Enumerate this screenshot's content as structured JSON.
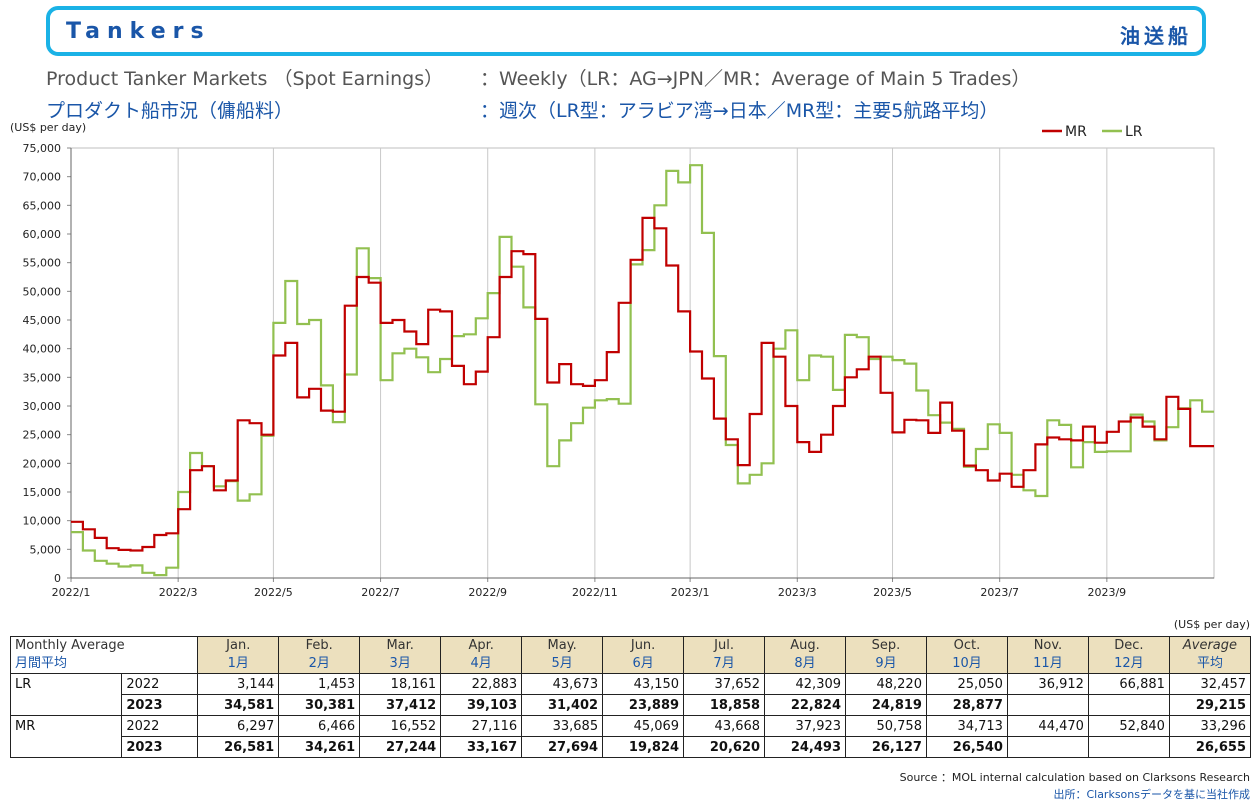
{
  "header": {
    "title": "Tankers",
    "title_jp": "油送船",
    "subtitle_en_left": "Product Tanker Markets （Spot Earnings）",
    "subtitle_en_right": "：Weekly（LR：AG→JPN／MR：Average of Main 5 Trades）",
    "subtitle_jp_left": "プロダクト船市況（傭船料）",
    "subtitle_jp_right": "：週次（LR型：アラビア湾→日本／MR型：主要5航路平均）"
  },
  "chart_data": {
    "type": "line",
    "ylabel": "(US$ per day)",
    "ylim": [
      0,
      75000
    ],
    "yticks": [
      0,
      5000,
      10000,
      15000,
      20000,
      25000,
      30000,
      35000,
      40000,
      45000,
      50000,
      55000,
      60000,
      65000,
      70000,
      75000
    ],
    "ytick_labels": [
      "0",
      "5,000",
      "10,000",
      "15,000",
      "20,000",
      "25,000",
      "30,000",
      "35,000",
      "40,000",
      "45,000",
      "50,000",
      "55,000",
      "60,000",
      "65,000",
      "70,000",
      "75,000"
    ],
    "xtick_labels": [
      "2022/1",
      "2022/3",
      "2022/5",
      "2022/7",
      "2022/9",
      "2022/11",
      "2023/1",
      "2023/3",
      "2023/5",
      "2023/7",
      "2023/9"
    ],
    "xtick_weeks": [
      0,
      9,
      17,
      26,
      35,
      44,
      52,
      61,
      69,
      78,
      87
    ],
    "x_unit": "week index starting 2022/1",
    "legend_position": "top-right",
    "grid": "vertical",
    "series": [
      {
        "name": "MR",
        "color": "#c00000",
        "values": [
          9800,
          8500,
          7000,
          5200,
          4900,
          4800,
          5400,
          7500,
          7800,
          12000,
          18800,
          19500,
          15300,
          17000,
          27500,
          27000,
          25000,
          38800,
          41000,
          31500,
          33000,
          29200,
          29000,
          47500,
          52500,
          51500,
          44500,
          45000,
          43000,
          40800,
          46800,
          46500,
          37000,
          33800,
          36000,
          42000,
          52500,
          57000,
          56500,
          45200,
          34100,
          37300,
          33800,
          33500,
          34500,
          39400,
          48000,
          55500,
          62800,
          61000,
          54500,
          46500,
          39500,
          34800,
          27800,
          24200,
          19700,
          28600,
          41000,
          38600,
          30000,
          23700,
          22000,
          25000,
          30000,
          35000,
          36400,
          38600,
          32300,
          25400,
          27600,
          27500,
          25300,
          30600,
          25700,
          19600,
          18800,
          17000,
          18200,
          15900,
          18800,
          23300,
          24500,
          24200,
          24000,
          26400,
          23600,
          25500,
          27300,
          28000,
          26400,
          24200,
          31600,
          29500,
          23000,
          23000,
          23000
        ]
      },
      {
        "name": "LR",
        "color": "#92c050",
        "values": [
          8000,
          4800,
          3000,
          2500,
          2000,
          2200,
          900,
          500,
          1800,
          15000,
          21800,
          19500,
          16000,
          16900,
          13500,
          14600,
          24800,
          44500,
          51800,
          44300,
          45000,
          33600,
          27200,
          35500,
          57500,
          52300,
          34500,
          39200,
          40000,
          38500,
          35900,
          38200,
          42200,
          42500,
          45300,
          49700,
          59500,
          54300,
          47200,
          30300,
          19500,
          24000,
          27000,
          29700,
          31000,
          31200,
          30400,
          54700,
          57200,
          65000,
          71000,
          69000,
          72000,
          60200,
          38700,
          23200,
          16500,
          18000,
          20000,
          40000,
          43200,
          34500,
          38800,
          38600,
          32800,
          42400,
          42000,
          38200,
          38600,
          38000,
          37400,
          32700,
          28400,
          27100,
          26000,
          19400,
          22500,
          26800,
          25300,
          18000,
          15300,
          14300,
          27500,
          26700,
          19300,
          23700,
          22000,
          22100,
          22100,
          28500,
          27300,
          24000,
          26300,
          29600,
          31000,
          29000,
          29000
        ]
      }
    ]
  },
  "table": {
    "unit": "(US$ per day)",
    "header_en": "Monthly Average",
    "header_jp": "月間平均",
    "months_en": [
      "Jan.",
      "Feb.",
      "Mar.",
      "Apr.",
      "May.",
      "Jun.",
      "Jul.",
      "Aug.",
      "Sep.",
      "Oct.",
      "Nov.",
      "Dec."
    ],
    "months_jp": [
      "1月",
      "2月",
      "3月",
      "4月",
      "5月",
      "6月",
      "7月",
      "8月",
      "9月",
      "10月",
      "11月",
      "12月"
    ],
    "average_en": "Average",
    "average_jp": "平均",
    "rows": [
      {
        "category": "LR",
        "year": "2022",
        "bold": false,
        "values": [
          "3,144",
          "1,453",
          "18,161",
          "22,883",
          "43,673",
          "43,150",
          "37,652",
          "42,309",
          "48,220",
          "25,050",
          "36,912",
          "66,881"
        ],
        "average": "32,457"
      },
      {
        "category": "",
        "year": "2023",
        "bold": true,
        "values": [
          "34,581",
          "30,381",
          "37,412",
          "39,103",
          "31,402",
          "23,889",
          "18,858",
          "22,824",
          "24,819",
          "28,877",
          "",
          ""
        ],
        "average": "29,215"
      },
      {
        "category": "MR",
        "year": "2022",
        "bold": false,
        "values": [
          "6,297",
          "6,466",
          "16,552",
          "27,116",
          "33,685",
          "45,069",
          "43,668",
          "37,923",
          "50,758",
          "34,713",
          "44,470",
          "52,840"
        ],
        "average": "33,296"
      },
      {
        "category": "",
        "year": "2023",
        "bold": true,
        "values": [
          "26,581",
          "34,261",
          "27,244",
          "33,167",
          "27,694",
          "19,824",
          "20,620",
          "24,493",
          "26,127",
          "26,540",
          "",
          ""
        ],
        "average": "26,655"
      }
    ]
  },
  "source": {
    "en": "Source ：MOL internal calculation based on Clarksons Research",
    "jp": "出所：Clarksonsデータを基に当社作成"
  }
}
